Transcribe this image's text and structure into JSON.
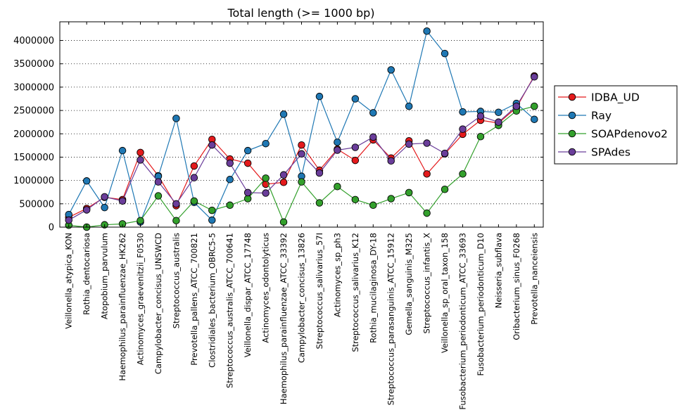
{
  "chart_data": {
    "type": "line",
    "title": "Total length (>= 1000 bp)",
    "xlabel": "",
    "ylabel": "",
    "ylim": [
      0,
      4400000
    ],
    "yticks": [
      0,
      500000,
      1000000,
      1500000,
      2000000,
      2500000,
      3000000,
      3500000,
      4000000
    ],
    "ytick_labels": [
      "0",
      "500000",
      "1000000",
      "1500000",
      "2000000",
      "2500000",
      "3000000",
      "3500000",
      "4000000"
    ],
    "grid": "horizontal dotted",
    "legend_position": "right",
    "categories": [
      "Veillonella_atypica_KON",
      "Rothia_dentocariosa",
      "Atopobium_parvulum",
      "Haemophilus_parainfluenzae_HK262",
      "Actinomyces_graevenitzii_F0530",
      "Campylobacter_concisus_UNSWCD",
      "Streptococcus_australis",
      "Prevotella_pallens_ATCC_700821",
      "Clostridiales_bacterium_OBRC5-5",
      "Streptococcus_australis_ATCC_700641",
      "Veillonella_dispar_ATCC_17748",
      "Actinomyces_odontolyticus",
      "Haemophilus_parainfluenzae_ATCC_33392",
      "Campylobacter_concisus_13826",
      "Streptococcus_salivarius_57I",
      "Actinomyces_sp_ph3",
      "Streptococcus_salivarius_K12",
      "Rothia_mucilaginosa_DY-18",
      "Streptococcus_parasanguinis_ATCC_15912",
      "Gemella_sanguinis_M325",
      "Streptococcus_infantis_X",
      "Veillonella_sp_oral_taxon_158",
      "Fusobacterium_periodonticum_ATCC_33693",
      "Fusobacterium_periodonticum_D10",
      "Neisseria_subflava",
      "Oribacterium_sinus_F0268",
      "Prevotella_nanceiensis"
    ],
    "series": [
      {
        "name": "IDBA_UD",
        "color": "#e41a1c",
        "values": [
          210000,
          400000,
          640000,
          590000,
          1600000,
          1100000,
          460000,
          1310000,
          1880000,
          1460000,
          1370000,
          920000,
          960000,
          1760000,
          1220000,
          1670000,
          1430000,
          1870000,
          1480000,
          1850000,
          1140000,
          1570000,
          1990000,
          2290000,
          2230000,
          2560000,
          3240000
        ]
      },
      {
        "name": "Ray",
        "color": "#1f78b4",
        "values": [
          270000,
          990000,
          420000,
          1640000,
          110000,
          1090000,
          2330000,
          530000,
          150000,
          1020000,
          1640000,
          1790000,
          2420000,
          1090000,
          2800000,
          1820000,
          2750000,
          2450000,
          3370000,
          2590000,
          4200000,
          3720000,
          2470000,
          2480000,
          2460000,
          2650000,
          2310000
        ]
      },
      {
        "name": "SOAPdenovo2",
        "color": "#33a02c",
        "values": [
          40000,
          0,
          50000,
          70000,
          140000,
          670000,
          140000,
          560000,
          360000,
          470000,
          610000,
          1050000,
          110000,
          970000,
          520000,
          870000,
          590000,
          470000,
          610000,
          740000,
          300000,
          810000,
          1140000,
          1940000,
          2180000,
          2490000,
          2590000
        ]
      },
      {
        "name": "SPAdes",
        "color": "#6a3d9a",
        "values": [
          150000,
          370000,
          650000,
          560000,
          1440000,
          970000,
          500000,
          1060000,
          1760000,
          1370000,
          740000,
          730000,
          1120000,
          1570000,
          1160000,
          1650000,
          1710000,
          1930000,
          1420000,
          1780000,
          1800000,
          1580000,
          2100000,
          2380000,
          2250000,
          2590000,
          3220000
        ]
      }
    ]
  }
}
